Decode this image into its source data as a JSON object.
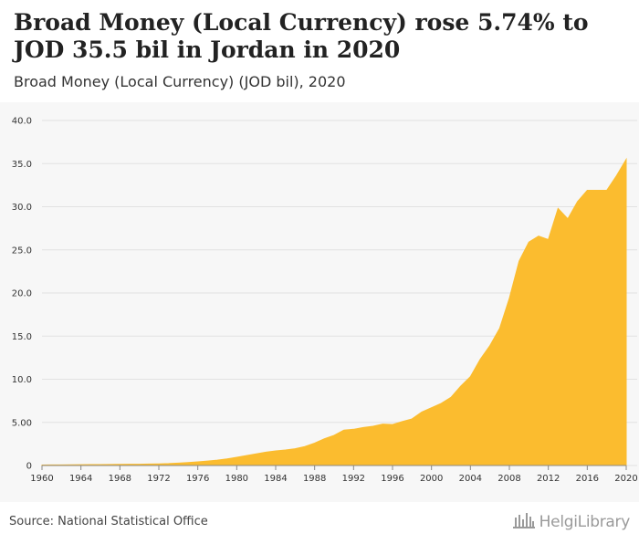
{
  "title": "Broad Money (Local Currency) rose 5.74% to JOD 35.5 bil in Jordan in 2020",
  "subtitle": "Broad Money (Local Currency) (JOD bil), 2020",
  "source": "Source: National Statistical Office",
  "brand": "HelgiLibrary",
  "colors": {
    "area": "#FBBC2F",
    "background": "#F7F7F7",
    "grid": "#E2E2E2"
  },
  "chart_data": {
    "type": "area",
    "title": "Broad Money (Local Currency) rose 5.74% to JOD 35.5 bil in Jordan in 2020",
    "subtitle": "Broad Money (Local Currency) (JOD bil), 2020",
    "xlabel": "",
    "ylabel": "",
    "xlim": [
      1960,
      2020
    ],
    "ylim": [
      0,
      40
    ],
    "grid": true,
    "legend": "none",
    "y_ticks": [
      "0",
      "5.00",
      "10.0",
      "15.0",
      "20.0",
      "25.0",
      "30.0",
      "35.0",
      "40.0"
    ],
    "x_ticks": [
      "1960",
      "1964",
      "1968",
      "1972",
      "1976",
      "1980",
      "1984",
      "1988",
      "1992",
      "1996",
      "2000",
      "2004",
      "2008",
      "2012",
      "2016",
      "2020"
    ],
    "x": [
      1960,
      1961,
      1962,
      1963,
      1964,
      1965,
      1966,
      1967,
      1968,
      1969,
      1970,
      1971,
      1972,
      1973,
      1974,
      1975,
      1976,
      1977,
      1978,
      1979,
      1980,
      1981,
      1982,
      1983,
      1984,
      1985,
      1986,
      1987,
      1988,
      1989,
      1990,
      1991,
      1992,
      1993,
      1994,
      1995,
      1996,
      1997,
      1998,
      1999,
      2000,
      2001,
      2002,
      2003,
      2004,
      2005,
      2006,
      2007,
      2008,
      2009,
      2010,
      2011,
      2012,
      2013,
      2014,
      2015,
      2016,
      2017,
      2018,
      2019,
      2020
    ],
    "series": [
      {
        "values": [
          0.05,
          0.06,
          0.07,
          0.08,
          0.09,
          0.1,
          0.11,
          0.12,
          0.13,
          0.14,
          0.15,
          0.17,
          0.19,
          0.22,
          0.28,
          0.35,
          0.43,
          0.52,
          0.62,
          0.77,
          0.95,
          1.15,
          1.35,
          1.55,
          1.7,
          1.8,
          1.95,
          2.2,
          2.6,
          3.1,
          3.5,
          4.1,
          4.2,
          4.4,
          4.55,
          4.8,
          4.75,
          5.1,
          5.4,
          6.2,
          6.7,
          7.2,
          7.9,
          9.2,
          10.3,
          12.3,
          13.9,
          15.9,
          19.4,
          23.7,
          25.9,
          26.6,
          26.2,
          29.8,
          28.6,
          30.6,
          31.9,
          31.9,
          31.9,
          33.6,
          35.5
        ]
      }
    ]
  }
}
